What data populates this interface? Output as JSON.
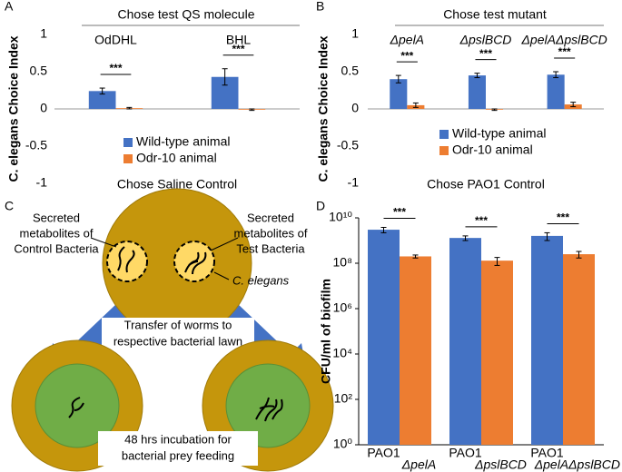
{
  "chart_data": [
    {
      "type": "bar",
      "panel": "A",
      "header": "Chose test QS molecule",
      "categories": [
        "OdDHL",
        "BHL"
      ],
      "series": [
        {
          "name": "Wild-type animal",
          "color": "#4472c4",
          "values": [
            0.24,
            0.43
          ],
          "errors": [
            0.04,
            0.11
          ]
        },
        {
          "name": "Odr-10 animal",
          "color": "#ed7d31",
          "values": [
            0.01,
            -0.01
          ],
          "errors": [
            0.01,
            0.01
          ]
        }
      ],
      "annotations": [
        "***",
        "***"
      ],
      "y_label": "C. elegans Choice Index",
      "x_label": "Chose Saline Control",
      "ylim": [
        -1,
        1
      ],
      "yticks": [
        -1,
        -0.5,
        0,
        0.5,
        1
      ]
    },
    {
      "type": "bar",
      "panel": "B",
      "header": "Chose test mutant",
      "categories": [
        "ΔpelA",
        "ΔpslBCD",
        "ΔpelAΔpslBCD"
      ],
      "series": [
        {
          "name": "Wild-type animal",
          "color": "#4472c4",
          "values": [
            0.4,
            0.45,
            0.46
          ],
          "errors": [
            0.05,
            0.03,
            0.04
          ]
        },
        {
          "name": "Odr-10 animal",
          "color": "#ed7d31",
          "values": [
            0.05,
            -0.01,
            0.06
          ],
          "errors": [
            0.03,
            0.01,
            0.03
          ]
        }
      ],
      "annotations": [
        "***",
        "***",
        "***"
      ],
      "y_label": "C. elegans Choice Index",
      "x_label": "Chose PAO1 Control",
      "ylim": [
        -1,
        1
      ],
      "yticks": [
        -1,
        -0.5,
        0,
        0.5,
        1
      ]
    },
    {
      "type": "bar",
      "panel": "D",
      "log_y": true,
      "categories": [
        "PAO1",
        "ΔpelA",
        "PAO1",
        "ΔpslBCD",
        "PAO1",
        "ΔpelAΔpslBCD"
      ],
      "values": [
        3000000000,
        200000000,
        1300000000,
        130000000,
        1600000000,
        250000000
      ],
      "errors": [
        800000000,
        30000000,
        300000000,
        50000000,
        600000000,
        80000000
      ],
      "colors": [
        "#4472c4",
        "#ed7d31",
        "#4472c4",
        "#ed7d31",
        "#4472c4",
        "#ed7d31"
      ],
      "annotations": [
        "***",
        "***",
        "***"
      ],
      "y_label": "CFU/ml of biofilm",
      "ylim": [
        1,
        10000000000
      ],
      "yticks": [
        {
          "value": 1,
          "label": "10⁰"
        },
        {
          "value": 100,
          "label": "10²"
        },
        {
          "value": 10000,
          "label": "10⁴"
        },
        {
          "value": 1000000,
          "label": "10⁶"
        },
        {
          "value": 100000000,
          "label": "10⁸"
        },
        {
          "value": 10000000000,
          "label": "10¹⁰"
        }
      ]
    }
  ],
  "diagram": {
    "panel": "C",
    "control_label": [
      "Secreted",
      "metabolites of",
      "Control Bacteria"
    ],
    "test_label": [
      "Secreted",
      "metabolites of",
      "Test Bacteria"
    ],
    "worm_label": "C. elegans",
    "transfer_label": [
      "Transfer of worms to",
      "respective bacterial lawn"
    ],
    "incubation_label": [
      "48 hrs incubation for",
      "bacterial prey feeding"
    ]
  }
}
